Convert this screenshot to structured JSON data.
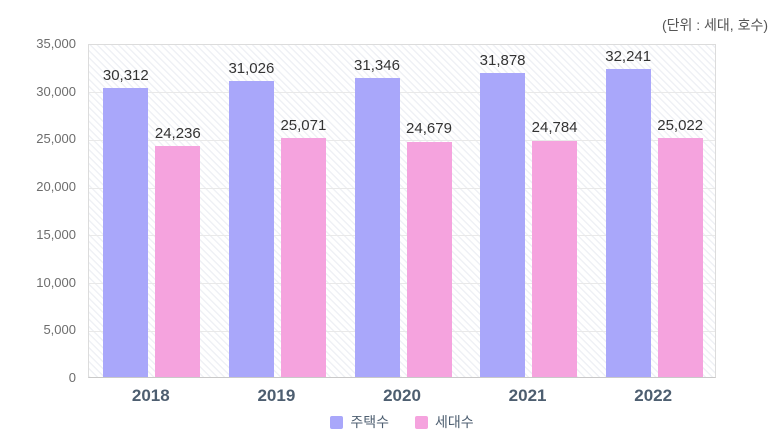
{
  "chart_data": {
    "type": "bar",
    "unit_label": "(단위 : 세대, 호수)",
    "categories": [
      "2018",
      "2019",
      "2020",
      "2021",
      "2022"
    ],
    "series": [
      {
        "name": "주택수",
        "color": "#a9a7fa",
        "values": [
          30312,
          31026,
          31346,
          31878,
          32241
        ]
      },
      {
        "name": "세대수",
        "color": "#f5a3de",
        "values": [
          24236,
          25071,
          24679,
          24784,
          25022
        ]
      }
    ],
    "ylim": [
      0,
      35000
    ],
    "ytick_step": 5000,
    "grid": true,
    "legend_position": "bottom",
    "background_pattern": "diagonal-hatch",
    "colors": {
      "grid": "#e9e9e9",
      "plot_border": "#dcdcdc",
      "axis_label": "#6d6d6d",
      "category_label": "#4d5e70",
      "value_label": "#333333"
    }
  }
}
